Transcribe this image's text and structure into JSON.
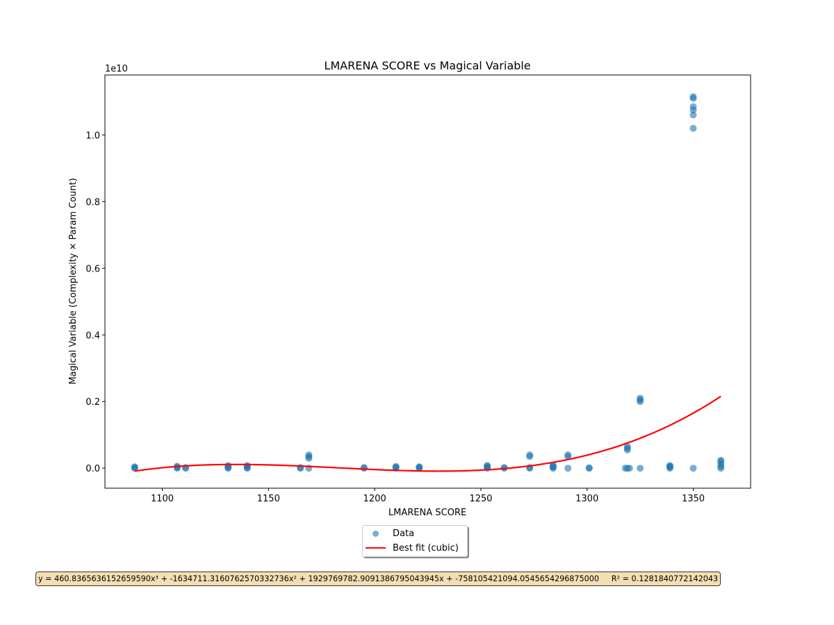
{
  "chart_data": {
    "type": "scatter",
    "title": "LMARENA SCORE vs Magical Variable",
    "xlabel": "LMARENA SCORE",
    "ylabel": "Magical Variable (Complexity × Param Count)",
    "y_offset_label": "1e10",
    "xlim": [
      1073,
      1377
    ],
    "ylim": [
      -0.06,
      1.18
    ],
    "y_unit_scale": "1e10",
    "x_ticks": [
      1100,
      1150,
      1200,
      1250,
      1300,
      1350
    ],
    "x_tick_labels": [
      "1100",
      "1150",
      "1200",
      "1250",
      "1300",
      "1350"
    ],
    "y_ticks": [
      0.0,
      0.2,
      0.4,
      0.6,
      0.8,
      1.0
    ],
    "y_tick_labels": [
      "0.0",
      "0.2",
      "0.4",
      "0.6",
      "0.8",
      "1.0"
    ],
    "grid": false,
    "legend_position": "below plot, centered",
    "series": [
      {
        "name": "Data",
        "kind": "scatter",
        "color": "#1f77b4",
        "alpha": 0.6,
        "points": [
          [
            1087,
            0.0
          ],
          [
            1087,
            0.002
          ],
          [
            1087,
            0.004
          ],
          [
            1107,
            0.0
          ],
          [
            1107,
            0.003
          ],
          [
            1107,
            0.006
          ],
          [
            1111,
            0.0
          ],
          [
            1111,
            0.002
          ],
          [
            1131,
            0.0
          ],
          [
            1131,
            0.002
          ],
          [
            1131,
            0.005
          ],
          [
            1131,
            0.008
          ],
          [
            1140,
            0.0
          ],
          [
            1140,
            0.002
          ],
          [
            1140,
            0.005
          ],
          [
            1140,
            0.008
          ],
          [
            1165,
            0.0
          ],
          [
            1165,
            0.002
          ],
          [
            1169,
            0.0
          ],
          [
            1169,
            0.03
          ],
          [
            1169,
            0.035
          ],
          [
            1169,
            0.04
          ],
          [
            1195,
            0.0
          ],
          [
            1195,
            0.002
          ],
          [
            1210,
            0.0
          ],
          [
            1210,
            0.003
          ],
          [
            1210,
            0.005
          ],
          [
            1221,
            0.0
          ],
          [
            1221,
            0.003
          ],
          [
            1221,
            0.004
          ],
          [
            1253,
            0.0
          ],
          [
            1253,
            0.003
          ],
          [
            1253,
            0.006
          ],
          [
            1253,
            0.008
          ],
          [
            1261,
            0.0
          ],
          [
            1261,
            0.002
          ],
          [
            1273,
            0.0
          ],
          [
            1273,
            0.002
          ],
          [
            1273,
            0.035
          ],
          [
            1273,
            0.04
          ],
          [
            1284,
            0.0
          ],
          [
            1284,
            0.003
          ],
          [
            1284,
            0.006
          ],
          [
            1284,
            0.009
          ],
          [
            1291,
            0.0
          ],
          [
            1291,
            0.035
          ],
          [
            1291,
            0.04
          ],
          [
            1301,
            0.0
          ],
          [
            1301,
            0.001
          ],
          [
            1318,
            0.0
          ],
          [
            1319,
            0.0
          ],
          [
            1320,
            0.0
          ],
          [
            1319,
            0.055
          ],
          [
            1319,
            0.06
          ],
          [
            1319,
            0.065
          ],
          [
            1325,
            0.0
          ],
          [
            1325,
            0.2
          ],
          [
            1325,
            0.205
          ],
          [
            1325,
            0.21
          ],
          [
            1339,
            0.0
          ],
          [
            1339,
            0.003
          ],
          [
            1339,
            0.006
          ],
          [
            1339,
            0.008
          ],
          [
            1350,
            0.0
          ],
          [
            1350,
            1.02
          ],
          [
            1350,
            1.06
          ],
          [
            1350,
            1.075
          ],
          [
            1350,
            1.085
          ],
          [
            1350,
            1.11
          ],
          [
            1350,
            1.115
          ],
          [
            1363,
            0.0
          ],
          [
            1363,
            0.005
          ],
          [
            1363,
            0.012
          ],
          [
            1363,
            0.02
          ],
          [
            1363,
            0.024
          ]
        ]
      },
      {
        "name": "Best fit (cubic)",
        "kind": "line",
        "color": "#ff0000",
        "x_range": [
          1087,
          1363
        ],
        "coefficients": [
          460.83656361526596,
          -1634711.316076257,
          1929769782.9091387,
          -758105421094.0546
        ]
      }
    ],
    "annotation": "y = 460.8365636152659590x³ + -1634711.3160762570332736x² + 1929769782.9091386795043945x + -758105421094.0545654296875000     R² = 0.1281840772142043"
  },
  "legend": {
    "data_label": "Data",
    "fit_label": "Best fit (cubic)"
  },
  "colors": {
    "data": "#1f77b4",
    "fit": "#ff0000",
    "annotation_bg": "#f5deb3"
  }
}
